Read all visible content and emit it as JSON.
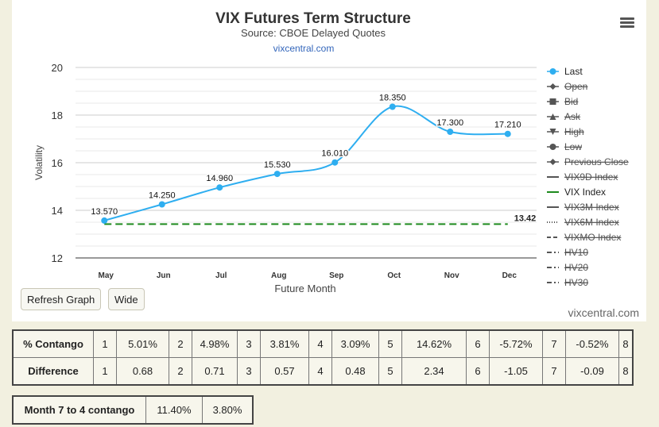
{
  "chart_data": {
    "type": "line",
    "title": "VIX Futures Term Structure",
    "subtitle": "Source: CBOE Delayed Quotes",
    "source_link": "vixcentral.com",
    "xlabel": "Future Month",
    "ylabel": "Volatility",
    "categories": [
      "May",
      "Jun",
      "Jul",
      "Aug",
      "Sep",
      "Oct",
      "Nov",
      "Dec"
    ],
    "ylim": [
      12,
      20
    ],
    "yticks": [
      12,
      14,
      16,
      18,
      20
    ],
    "grid": true,
    "series": [
      {
        "name": "Last",
        "color": "#2eaef0",
        "values": [
          13.57,
          14.25,
          14.96,
          15.53,
          16.01,
          18.35,
          17.3,
          17.21
        ],
        "labels": [
          "13.570",
          "14.250",
          "14.960",
          "15.530",
          "16.010",
          "18.350",
          "17.300",
          "17.210"
        ]
      },
      {
        "name": "VIX Index",
        "color": "#1e8a1e",
        "value": 13.42,
        "label": "13.42",
        "style": "dashed"
      }
    ],
    "legend": {
      "placement": "right",
      "items": [
        {
          "name": "Last",
          "active": true,
          "marker": "circle",
          "color": "#2eaef0"
        },
        {
          "name": "Open",
          "active": false,
          "marker": "diamond"
        },
        {
          "name": "Bid",
          "active": false,
          "marker": "square"
        },
        {
          "name": "Ask",
          "active": false,
          "marker": "triangle"
        },
        {
          "name": "High",
          "active": false,
          "marker": "triangle-down"
        },
        {
          "name": "Low",
          "active": false,
          "marker": "circle"
        },
        {
          "name": "Previous Close",
          "active": false,
          "marker": "diamond"
        },
        {
          "name": "VIX9D Index",
          "active": false,
          "marker": "line"
        },
        {
          "name": "VIX Index",
          "active": true,
          "marker": "line",
          "color": "#1e8a1e"
        },
        {
          "name": "VIX3M Index",
          "active": false,
          "marker": "line"
        },
        {
          "name": "VIX6M Index",
          "active": false,
          "marker": "dotted"
        },
        {
          "name": "VIXMO Index",
          "active": false,
          "marker": "dashed"
        },
        {
          "name": "HV10",
          "active": false,
          "marker": "dashdot"
        },
        {
          "name": "HV20",
          "active": false,
          "marker": "dashdot"
        },
        {
          "name": "HV30",
          "active": false,
          "marker": "dashdot"
        }
      ]
    }
  },
  "buttons": {
    "refresh": "Refresh Graph",
    "wide": "Wide"
  },
  "credit": "vixcentral.com",
  "contango_table": {
    "rows": [
      {
        "label": "% Contango",
        "cells": [
          "1",
          "5.01%",
          "2",
          "4.98%",
          "3",
          "3.81%",
          "4",
          "3.09%",
          "5",
          "14.62%",
          "6",
          "-5.72%",
          "7",
          "-0.52%",
          "8"
        ]
      },
      {
        "label": "Difference",
        "cells": [
          "1",
          "0.68",
          "2",
          "0.71",
          "3",
          "0.57",
          "4",
          "0.48",
          "5",
          "2.34",
          "6",
          "-1.05",
          "7",
          "-0.09",
          "8"
        ]
      }
    ]
  },
  "summary_table": {
    "label": "Month 7 to 4 contango",
    "values": [
      "11.40%",
      "3.80%"
    ]
  },
  "colors": {
    "background": "#f2f0e0",
    "panel": "#ffffff",
    "last_series": "#2eaef0",
    "vix_index": "#1e8a1e"
  }
}
